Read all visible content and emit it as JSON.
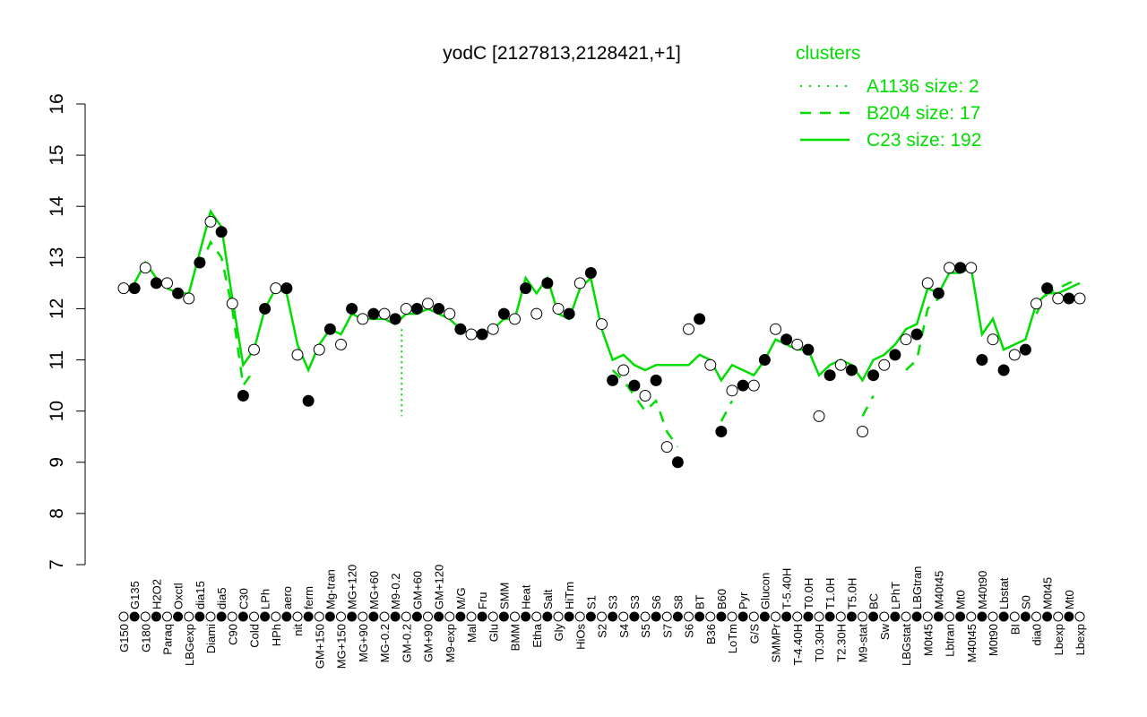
{
  "chart_data": {
    "type": "line",
    "title": "yodC [2127813,2128421,+1]",
    "xlabel": "",
    "ylabel": "",
    "ylim": [
      7,
      16
    ],
    "yticks": [
      7,
      8,
      9,
      10,
      11,
      12,
      13,
      14,
      15,
      16
    ],
    "grid": false,
    "legend": {
      "title": "clusters",
      "placement": "top-right",
      "entries": [
        {
          "name": "A1136 size: 2",
          "style": "dotted"
        },
        {
          "name": "B204 size: 17",
          "style": "dashed"
        },
        {
          "name": "C23 size: 192",
          "style": "solid"
        }
      ]
    },
    "color": "#00dd00",
    "categories": [
      "G150",
      "G135",
      "G180",
      "H2O2",
      "Paraq",
      "Oxctl",
      "LBGexp",
      "dia15",
      "Diami",
      "dia5",
      "C90",
      "C30",
      "Cold",
      "LPh",
      "HPh",
      "aero",
      "nit",
      "ferm",
      "GM+150",
      "Mg-tran",
      "MG+150",
      "MG+120",
      "MG+90",
      "MG+60",
      "MG-0.2",
      "M9-0.2",
      "GM-0.2",
      "GM+60",
      "GM+90",
      "GM+120",
      "M9-exp",
      "M/G",
      "Mal",
      "Fru",
      "Glu",
      "SMM",
      "BMM",
      "Heat",
      "Etha",
      "Salt",
      "Gly",
      "HiTm",
      "HiOs",
      "S1",
      "S2",
      "S3",
      "S4",
      "S3",
      "S5",
      "S6",
      "S7",
      "S8",
      "S6",
      "BT",
      "B36",
      "B60",
      "LoTm",
      "Pyr",
      "G/S",
      "Glucon",
      "SMMPr",
      "T-5.40H",
      "T-4.40H",
      "T0.0H",
      "T0.30H",
      "T1.0H",
      "T2.30H",
      "T5.0H",
      "M9-stat",
      "BC",
      "Sw",
      "LPhT",
      "LBGstat",
      "LBGtran",
      "M0t45",
      "M40t45",
      "Lbtran",
      "Mt0",
      "M40t45",
      "M40t90",
      "M0t90",
      "Lbstat",
      "BI",
      "S0",
      "dia0",
      "M0t45",
      "Lbexp",
      "Mt0",
      "Lbexp"
    ],
    "values": [
      12.4,
      12.4,
      12.8,
      12.5,
      12.5,
      12.3,
      12.2,
      12.9,
      13.7,
      13.5,
      12.1,
      10.3,
      11.2,
      12.0,
      12.4,
      12.4,
      11.1,
      10.2,
      11.2,
      11.6,
      11.3,
      12.0,
      11.8,
      11.9,
      11.9,
      11.8,
      12.0,
      12.0,
      12.1,
      12.0,
      11.9,
      11.6,
      11.5,
      11.5,
      11.6,
      11.9,
      11.8,
      12.4,
      11.9,
      12.5,
      12.0,
      11.9,
      12.5,
      12.7,
      11.7,
      10.6,
      10.8,
      10.5,
      10.3,
      10.6,
      9.3,
      9.0,
      11.6,
      11.8,
      10.9,
      9.6,
      10.4,
      10.5,
      10.5,
      11.0,
      11.6,
      11.4,
      11.3,
      11.2,
      9.9,
      10.7,
      10.9,
      10.8,
      9.6,
      10.7,
      10.9,
      11.1,
      11.4,
      11.5,
      12.5,
      12.3,
      12.8,
      12.8,
      12.8,
      11.0,
      11.4,
      10.8,
      11.1,
      11.2,
      12.1,
      12.4,
      12.2,
      12.2,
      12.2
    ],
    "series": [
      {
        "name": "C23 size: 192",
        "values": [
          12.3,
          12.5,
          12.9,
          12.6,
          12.4,
          12.3,
          12.3,
          13.1,
          13.9,
          13.6,
          12.2,
          10.9,
          11.2,
          12.0,
          12.4,
          12.3,
          11.3,
          10.8,
          11.3,
          11.6,
          11.5,
          11.9,
          11.8,
          11.8,
          11.8,
          11.7,
          11.9,
          11.9,
          12.0,
          11.9,
          11.8,
          11.6,
          11.5,
          11.5,
          11.6,
          11.8,
          11.8,
          12.6,
          12.3,
          12.6,
          11.9,
          11.8,
          12.4,
          12.6,
          11.6,
          11.0,
          11.1,
          10.9,
          10.8,
          10.9,
          10.9,
          10.9,
          10.9,
          11.1,
          11.0,
          10.6,
          10.9,
          10.8,
          10.7,
          11.0,
          11.4,
          11.3,
          11.2,
          11.2,
          10.7,
          10.9,
          11.0,
          10.9,
          10.6,
          11.0,
          11.1,
          11.3,
          11.6,
          11.7,
          12.4,
          12.3,
          12.7,
          12.7,
          12.8,
          11.5,
          11.8,
          11.2,
          11.3,
          11.4,
          12.1,
          12.3,
          12.3,
          12.4,
          12.5
        ]
      },
      {
        "name": "B204 size: 17",
        "values": [
          null,
          null,
          null,
          null,
          null,
          null,
          null,
          12.8,
          13.3,
          13.0,
          12.0,
          10.5,
          10.8,
          null,
          null,
          null,
          null,
          10.4,
          null,
          null,
          null,
          null,
          null,
          null,
          null,
          null,
          null,
          null,
          null,
          null,
          null,
          null,
          null,
          null,
          null,
          null,
          null,
          null,
          null,
          null,
          null,
          null,
          null,
          null,
          null,
          10.8,
          10.6,
          10.3,
          10.0,
          10.2,
          9.6,
          9.3,
          null,
          null,
          null,
          9.8,
          10.2,
          null,
          null,
          null,
          null,
          null,
          null,
          null,
          null,
          null,
          null,
          null,
          9.9,
          10.3,
          null,
          null,
          10.8,
          11.0,
          12.0,
          12.2,
          null,
          null,
          null,
          null,
          null,
          null,
          null,
          null,
          11.9,
          12.3,
          12.4,
          12.5,
          12.6
        ]
      }
    ]
  }
}
